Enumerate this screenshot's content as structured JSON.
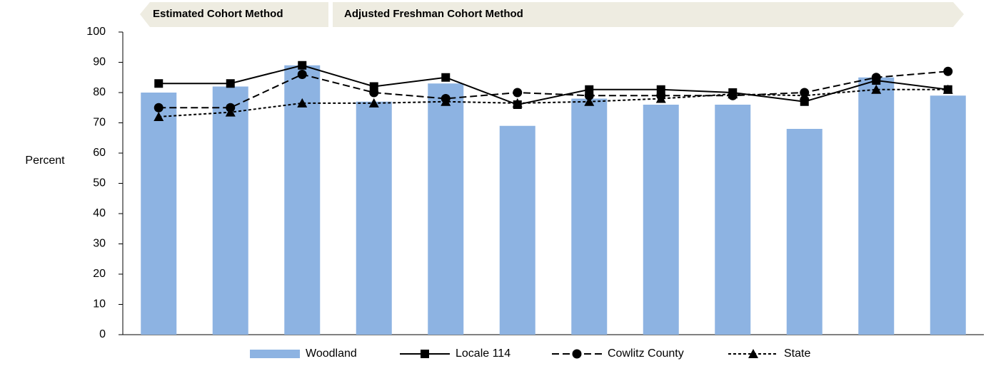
{
  "chart_data": {
    "type": "bar_line",
    "ylabel": "Percent",
    "annotations": [
      "Estimated Cohort Method",
      "Adjusted Freshman Cohort Method"
    ],
    "categories": [
      null,
      null,
      null,
      null,
      null,
      null,
      null,
      null,
      null,
      null,
      null,
      null
    ],
    "series": [
      {
        "name": "Woodland",
        "type": "bar",
        "color": "#8db3e2",
        "values": [
          80,
          82,
          89,
          77,
          83,
          69,
          78,
          76,
          76,
          68,
          85,
          79
        ]
      },
      {
        "name": "Locale 114",
        "type": "line",
        "color": "#000000",
        "line_style": "solid",
        "marker": "square",
        "values": [
          83,
          83,
          89,
          82,
          85,
          76,
          81,
          81,
          80,
          77,
          84,
          81
        ]
      },
      {
        "name": "Cowlitz County",
        "type": "line",
        "color": "#000000",
        "line_style": "dashed",
        "marker": "circle",
        "values": [
          75,
          75,
          86,
          80,
          78,
          80,
          79,
          79,
          79,
          80,
          85,
          87
        ]
      },
      {
        "name": "State",
        "type": "line",
        "color": "#000000",
        "line_style": "dotted",
        "marker": "triangle",
        "values": [
          72,
          73.5,
          76.5,
          76.5,
          77,
          76.5,
          77,
          78,
          79.5,
          79,
          81,
          81
        ]
      }
    ],
    "ylim": [
      0,
      100
    ],
    "yticks": [
      0,
      10,
      20,
      30,
      40,
      50,
      60,
      70,
      80,
      90,
      100
    ],
    "grid": false
  }
}
